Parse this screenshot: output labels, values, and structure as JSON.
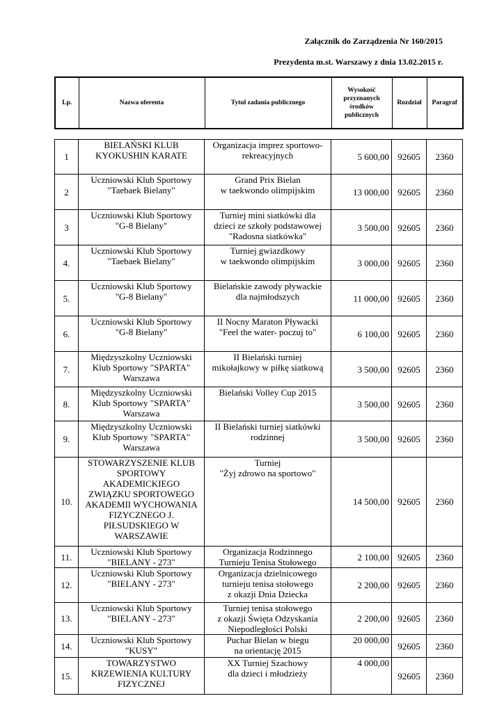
{
  "header": {
    "line1": "Załącznik do Zarządzenia Nr  160/2015",
    "line2": "Prezydenta m.st. Warszawy z dnia 13.02.2015 r."
  },
  "columns": [
    "Lp.",
    "Nazwa oferenta",
    "Tytuł zadania publicznego",
    "Wysokość przyznanych środków publicznych",
    "Rozdział",
    "Paragraf"
  ],
  "rows": [
    {
      "lp": "1",
      "name": "BIELAŃSKI KLUB\nKYOKUSHIN KARATE",
      "title": "Organizacja imprez sportowo-\nrekreacyjnych",
      "amount": "5 600,00",
      "rozdzial": "92605",
      "paragraf": "2360"
    },
    {
      "lp": "2",
      "name": "Uczniowski Klub Sportowy\n\"Taebaek Bielany\"",
      "title": "Grand Prix Bielan\nw taekwondo olimpijskim",
      "amount": "13 000,00",
      "rozdzial": "92605",
      "paragraf": "2360"
    },
    {
      "lp": "3",
      "name": "Uczniowski Klub Sportowy\n\"G-8 Bielany\"",
      "title": "Turniej mini siatkówki dla\ndzieci ze szkoły podstawowej\n\"Radosna siatkówka\"",
      "amount": "3 500,00",
      "rozdzial": "92605",
      "paragraf": "2360"
    },
    {
      "lp": "4.",
      "name": "Uczniowski Klub Sportowy\n\"Taebaek Bielany\"",
      "title": "Turniej gwiazdkowy\nw taekwondo olimpijskim",
      "amount": "3 000,00",
      "rozdzial": "92605",
      "paragraf": "2360"
    },
    {
      "lp": "5.",
      "name": "Uczniowski Klub Sportowy\n\"G-8 Bielany\"",
      "title": "Bielańskie zawody pływackie\ndla najmłodszych",
      "amount": "11 000,00",
      "rozdzial": "92605",
      "paragraf": "2360"
    },
    {
      "lp": "6.",
      "name": "Uczniowski Klub Sportowy\n\"G-8 Bielany\"",
      "title": "II Nocny Maraton Pływacki\n\"Feel the water- poczuj to\"",
      "amount": "6 100,00",
      "rozdzial": "92605",
      "paragraf": "2360"
    },
    {
      "lp": "7.",
      "name": "Międzyszkolny Uczniowski\nKlub Sportowy \"SPARTA\"\nWarszawa",
      "title": "II Bielański turniej\nmikołajkowy w piłkę siatkową",
      "amount": "3 500,00",
      "rozdzial": "92605",
      "paragraf": "2360"
    },
    {
      "lp": "8.",
      "name": "Międzyszkolny Uczniowski\nKlub Sportowy \"SPARTA\"\nWarszawa",
      "title": "Bielański Volley Cup 2015",
      "amount": "3 500,00",
      "rozdzial": "92605",
      "paragraf": "2360"
    },
    {
      "lp": "9.",
      "name": "Międzyszkolny Uczniowski\nKlub Sportowy \"SPARTA\"\nWarszawa",
      "title": "II Bielański turniej siatkówki\nrodzinnej",
      "amount": "3 500,00",
      "rozdzial": "92605",
      "paragraf": "2360"
    },
    {
      "lp": "10.",
      "name": "STOWARZYSZENIE KLUB\nSPORTOWY\nAKADEMICKIEGO\nZWIĄZKU SPORTOWEGO\nAKADEMII WYCHOWANIA\nFIZYCZNEGO J.\nPIŁSUDSKIEGO W\nWARSZAWIE",
      "title": "Turniej\n\"Żyj zdrowo na sportowo\"",
      "amount": "14 500,00",
      "rozdzial": "92605",
      "paragraf": "2360"
    },
    {
      "lp": "11.",
      "name": "Uczniowski Klub Sportowy\n\"BIELANY - 273\"",
      "title": "Organizacja Rodzinnego\nTurnieju Tenisa Stołowego",
      "amount": "2 100,00",
      "rozdzial": "92605",
      "paragraf": "2360"
    },
    {
      "lp": "12.",
      "name": "Uczniowski Klub Sportowy\n\"BIELANY - 273\"",
      "title": "Organizacja dzielnicowego\nturnieju tenisa stołowego\nz okazji Dnia Dziecka",
      "amount": "2 200,00",
      "rozdzial": "92605",
      "paragraf": "2360"
    },
    {
      "lp": "13.",
      "name": "Uczniowski Klub Sportowy\n\"BIELANY - 273\"",
      "title": "Turniej tenisa stołowego\nz okazji Święta Odzyskania\nNiepodległości Polski",
      "amount": "2 200,00",
      "rozdzial": "92605",
      "paragraf": "2360"
    },
    {
      "lp": "14.",
      "name": "Uczniowski Klub Sportowy\n\"KUSY\"",
      "title": "Puchar Bielan w biegu\nna orientację 2015",
      "amount": "20 000,00",
      "rozdzial": "92605",
      "paragraf": "2360"
    },
    {
      "lp": "15.",
      "name": "TOWARZYSTWO\nKRZEWIENIA KULTURY\nFIZYCZNEJ",
      "title": "XX Turniej Szachowy\ndla dzieci i młodzieży",
      "amount": "4 000,00",
      "rozdzial": "92605",
      "paragraf": "2360"
    }
  ]
}
